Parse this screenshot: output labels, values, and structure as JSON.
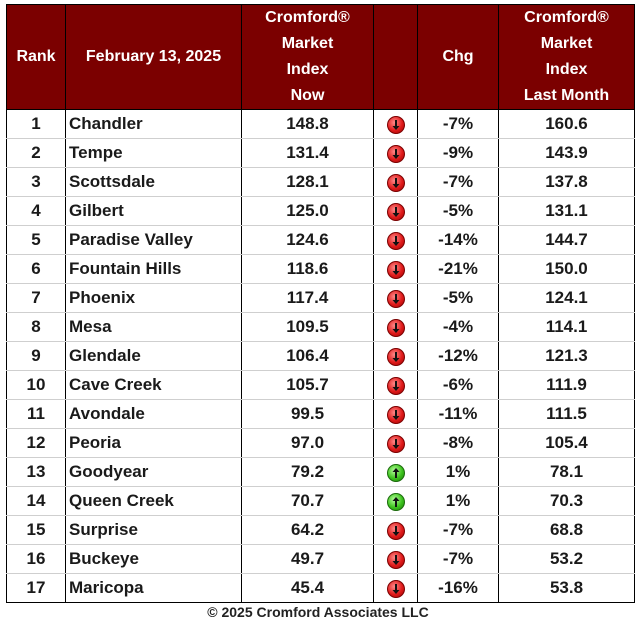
{
  "header": {
    "rank": "Rank",
    "date": "February 13, 2025",
    "now_lines": [
      "Cromford®",
      "Market",
      "Index",
      "Now"
    ],
    "chg": "Chg",
    "last_lines": [
      "Cromford®",
      "Market",
      "Index",
      "Last Month"
    ]
  },
  "rows": [
    {
      "rank": "1",
      "city": "Chandler",
      "now": "148.8",
      "dir": "down",
      "chg": "-7%",
      "last": "160.6"
    },
    {
      "rank": "2",
      "city": "Tempe",
      "now": "131.4",
      "dir": "down",
      "chg": "-9%",
      "last": "143.9"
    },
    {
      "rank": "3",
      "city": "Scottsdale",
      "now": "128.1",
      "dir": "down",
      "chg": "-7%",
      "last": "137.8"
    },
    {
      "rank": "4",
      "city": "Gilbert",
      "now": "125.0",
      "dir": "down",
      "chg": "-5%",
      "last": "131.1"
    },
    {
      "rank": "5",
      "city": "Paradise Valley",
      "now": "124.6",
      "dir": "down",
      "chg": "-14%",
      "last": "144.7"
    },
    {
      "rank": "6",
      "city": "Fountain Hills",
      "now": "118.6",
      "dir": "down",
      "chg": "-21%",
      "last": "150.0"
    },
    {
      "rank": "7",
      "city": "Phoenix",
      "now": "117.4",
      "dir": "down",
      "chg": "-5%",
      "last": "124.1"
    },
    {
      "rank": "8",
      "city": "Mesa",
      "now": "109.5",
      "dir": "down",
      "chg": "-4%",
      "last": "114.1"
    },
    {
      "rank": "9",
      "city": "Glendale",
      "now": "106.4",
      "dir": "down",
      "chg": "-12%",
      "last": "121.3"
    },
    {
      "rank": "10",
      "city": "Cave Creek",
      "now": "105.7",
      "dir": "down",
      "chg": "-6%",
      "last": "111.9"
    },
    {
      "rank": "11",
      "city": "Avondale",
      "now": "99.5",
      "dir": "down",
      "chg": "-11%",
      "last": "111.5"
    },
    {
      "rank": "12",
      "city": "Peoria",
      "now": "97.0",
      "dir": "down",
      "chg": "-8%",
      "last": "105.4"
    },
    {
      "rank": "13",
      "city": "Goodyear",
      "now": "79.2",
      "dir": "up",
      "chg": "1%",
      "last": "78.1"
    },
    {
      "rank": "14",
      "city": "Queen Creek",
      "now": "70.7",
      "dir": "up",
      "chg": "1%",
      "last": "70.3"
    },
    {
      "rank": "15",
      "city": "Surprise",
      "now": "64.2",
      "dir": "down",
      "chg": "-7%",
      "last": "68.8"
    },
    {
      "rank": "16",
      "city": "Buckeye",
      "now": "49.7",
      "dir": "down",
      "chg": "-7%",
      "last": "53.2"
    },
    {
      "rank": "17",
      "city": "Maricopa",
      "now": "45.4",
      "dir": "down",
      "chg": "-16%",
      "last": "53.8"
    }
  ],
  "icons": {
    "down": "down-arrow-icon",
    "up": "up-arrow-icon"
  },
  "colors": {
    "header_bg": "#7b0000",
    "header_text": "#ffffff",
    "down": "#e01b1b",
    "up": "#3cc21d"
  },
  "footer": "© 2025 Cromford Associates LLC"
}
